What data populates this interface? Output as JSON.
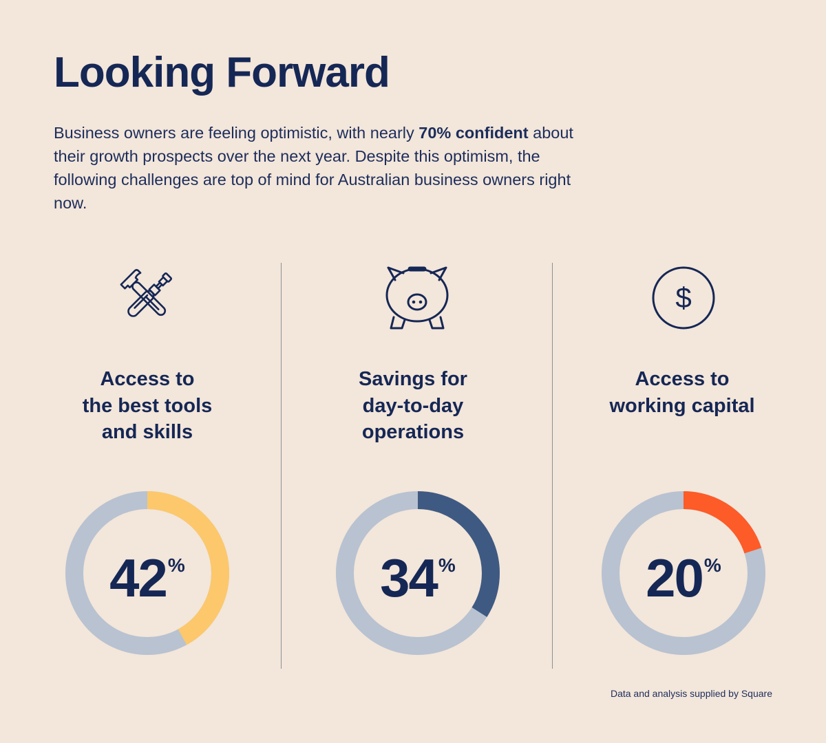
{
  "title": "Looking Forward",
  "intro": {
    "before": "Business owners are feeling optimistic, with nearly ",
    "bold": "70% confident",
    "after": " about their growth prospects over the next year. Despite this optimism, the following challenges are top of mind for Australian business owners right now."
  },
  "chart_data": {
    "type": "pie",
    "items": [
      {
        "label_lines": [
          "Access to",
          "the best tools",
          "and skills"
        ],
        "value": 42,
        "unit": "%",
        "color": "#fcc86b",
        "icon": "tools-icon"
      },
      {
        "label_lines": [
          "Savings for",
          "day-to-day",
          "operations"
        ],
        "value": 34,
        "unit": "%",
        "color": "#3f5a82",
        "icon": "piggy-bank-icon"
      },
      {
        "label_lines": [
          "Access to",
          "working capital"
        ],
        "value": 20,
        "unit": "%",
        "color": "#fd5b28",
        "icon": "dollar-icon"
      }
    ],
    "track_color": "#b8c2d1"
  },
  "source": "Data and analysis supplied by Square",
  "colors": {
    "background": "#f3e6da",
    "text": "#152755"
  }
}
